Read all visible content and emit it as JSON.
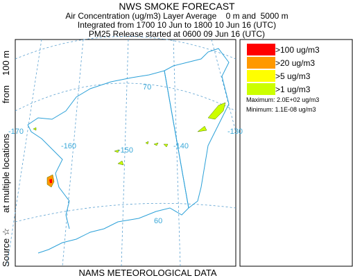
{
  "header": {
    "title": "NWS SMOKE FORECAST",
    "lines": [
      "Air Concentration (ug/m3) Layer Average    0 m and  5000 m",
      "Integrated from 1700 10 Jun to 1800 10 Jun 16 (UTC)",
      "PM25 Release started at 0600 09 Jun 16 (UTC)"
    ]
  },
  "side_label": [
    "Source ☆",
    "at multiple locations",
    "from",
    "100 m"
  ],
  "footer": "NAMS METEOROLOGICAL DATA",
  "legend": {
    "items": [
      {
        "label": ">100 ug/m3",
        "color": "#ff0000"
      },
      {
        "label": ">20 ug/m3",
        "color": "#ff9900"
      },
      {
        "label": ">5 ug/m3",
        "color": "#ffff00"
      },
      {
        "label": ">1 ug/m3",
        "color": "#ccff00"
      }
    ],
    "maximum": "Maximum: 2.0E+02 ug/m3",
    "minimum": "Minimum: 1.1E-08 ug/m3"
  },
  "map": {
    "lon_labels": [
      "-170",
      "-160",
      "-150",
      "-140",
      "-130"
    ],
    "lat_labels": [
      "70",
      "60"
    ]
  }
}
